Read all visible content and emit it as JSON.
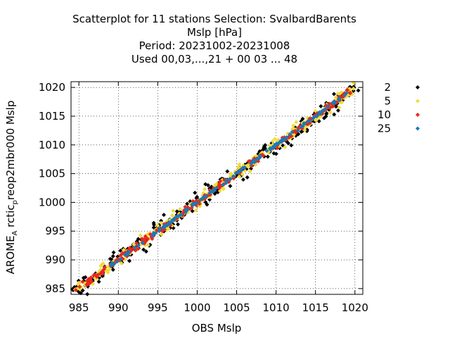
{
  "chart_data": {
    "type": "scatter",
    "title": {
      "line1": "Scatterplot for   11 stations Selection: SvalbardBarents",
      "line2": "Mslp [hPa]",
      "line3": "Period: 20231002-20231008",
      "line4": "Used  00,03,...,21  + 00 03 ... 48"
    },
    "xlabel": "OBS Mslp",
    "ylabel_main": "AROME",
    "ylabel_sub1": "A",
    "ylabel_mid": " rctic",
    "ylabel_sub2": "p",
    "ylabel_end": "reop2mbr000 Mslp",
    "xlim": [
      984,
      1021
    ],
    "ylim": [
      984,
      1021
    ],
    "xticks": [
      985,
      990,
      995,
      1000,
      1005,
      1010,
      1015,
      1020
    ],
    "yticks": [
      985,
      990,
      995,
      1000,
      1005,
      1010,
      1015,
      1020
    ],
    "grid": true,
    "legend_position": "right-outside-top",
    "series": [
      {
        "name": "2",
        "color": "#000000",
        "spread": 1.8,
        "count": 260,
        "range": [
          984,
          1020.5
        ]
      },
      {
        "name": "5",
        "color": "#f0dc3c",
        "spread": 1.2,
        "count": 280,
        "range": [
          984.5,
          1020
        ]
      },
      {
        "name": "10",
        "color": "#e8281c",
        "spread": 0.6,
        "count": 240,
        "range": [
          984.5,
          1019.5
        ]
      },
      {
        "name": "25",
        "color": "#1f78b4",
        "spread": 0.25,
        "count": 140,
        "range": [
          989,
          1019
        ]
      }
    ]
  }
}
